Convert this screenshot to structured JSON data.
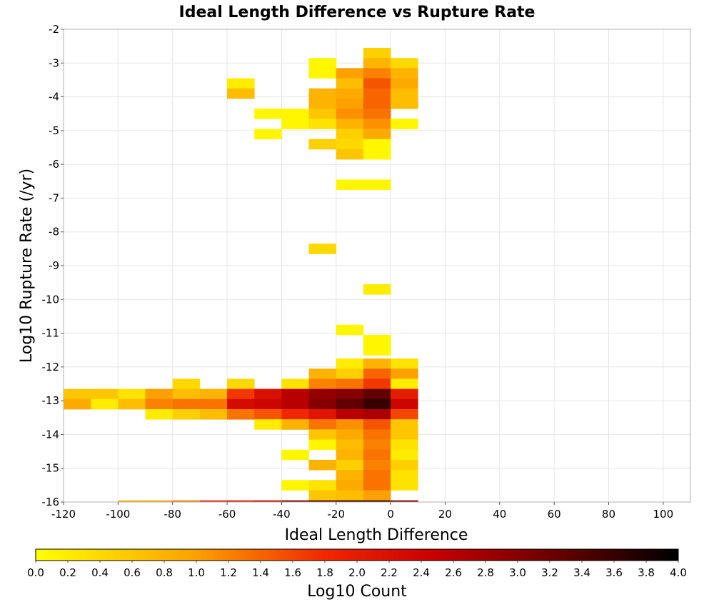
{
  "chart_data": {
    "type": "heatmap",
    "title": "Ideal Length Difference vs Rupture Rate",
    "xlabel": "Ideal Length Difference",
    "ylabel": "Log10 Rupture Rate (/yr)",
    "colorbar_label": "Log10 Count",
    "xlim": [
      -120,
      110
    ],
    "ylim": [
      -16,
      -2
    ],
    "x_ticks": [
      "-120",
      "-100",
      "-80",
      "-60",
      "-40",
      "-20",
      "0",
      "20",
      "40",
      "60",
      "80",
      "100"
    ],
    "y_ticks": [
      "-2",
      "-3",
      "-4",
      "-5",
      "-6",
      "-7",
      "-8",
      "-9",
      "-10",
      "-11",
      "-12",
      "-13",
      "-14",
      "-15",
      "-16"
    ],
    "colorbar_ticks": [
      "0.0",
      "0.2",
      "0.4",
      "0.6",
      "0.8",
      "1.0",
      "1.2",
      "1.4",
      "1.6",
      "1.8",
      "2.0",
      "2.2",
      "2.4",
      "2.6",
      "2.8",
      "3.0",
      "3.2",
      "3.4",
      "3.6",
      "3.8",
      "4.0"
    ],
    "colorbar_range": [
      0,
      4
    ],
    "grid": true,
    "bin_width_x": 10,
    "bin_height_y": 0.3,
    "cells": [
      {
        "x": -10,
        "y": -2.7,
        "v": 0.5
      },
      {
        "x": -30,
        "y": -3.0,
        "v": 0.1
      },
      {
        "x": -10,
        "y": -3.0,
        "v": 0.8
      },
      {
        "x": 0,
        "y": -3.0,
        "v": 0.4
      },
      {
        "x": -30,
        "y": -3.3,
        "v": 0.1
      },
      {
        "x": -20,
        "y": -3.3,
        "v": 1.0
      },
      {
        "x": -10,
        "y": -3.3,
        "v": 1.2
      },
      {
        "x": 0,
        "y": -3.3,
        "v": 0.8
      },
      {
        "x": -60,
        "y": -3.6,
        "v": 0.2
      },
      {
        "x": -20,
        "y": -3.6,
        "v": 0.7
      },
      {
        "x": -10,
        "y": -3.6,
        "v": 1.5
      },
      {
        "x": 0,
        "y": -3.6,
        "v": 0.9
      },
      {
        "x": -60,
        "y": -3.9,
        "v": 0.7
      },
      {
        "x": -30,
        "y": -3.9,
        "v": 0.8
      },
      {
        "x": -20,
        "y": -3.9,
        "v": 0.9
      },
      {
        "x": -10,
        "y": -3.9,
        "v": 1.4
      },
      {
        "x": 0,
        "y": -3.9,
        "v": 0.7
      },
      {
        "x": -30,
        "y": -4.2,
        "v": 0.8
      },
      {
        "x": -20,
        "y": -4.2,
        "v": 1.0
      },
      {
        "x": -10,
        "y": -4.2,
        "v": 1.4
      },
      {
        "x": 0,
        "y": -4.2,
        "v": 0.7
      },
      {
        "x": -50,
        "y": -4.5,
        "v": 0.1
      },
      {
        "x": -40,
        "y": -4.5,
        "v": 0.1
      },
      {
        "x": -30,
        "y": -4.5,
        "v": 0.6
      },
      {
        "x": -20,
        "y": -4.5,
        "v": 1.1
      },
      {
        "x": -10,
        "y": -4.5,
        "v": 1.3
      },
      {
        "x": -40,
        "y": -4.8,
        "v": 0.1
      },
      {
        "x": -30,
        "y": -4.8,
        "v": 0.3
      },
      {
        "x": -20,
        "y": -4.8,
        "v": 0.8
      },
      {
        "x": -10,
        "y": -4.8,
        "v": 1.1
      },
      {
        "x": 0,
        "y": -4.8,
        "v": 0.1
      },
      {
        "x": -50,
        "y": -5.1,
        "v": 0.1
      },
      {
        "x": -20,
        "y": -5.1,
        "v": 0.5
      },
      {
        "x": -10,
        "y": -5.1,
        "v": 0.9
      },
      {
        "x": -30,
        "y": -5.4,
        "v": 0.5
      },
      {
        "x": -20,
        "y": -5.4,
        "v": 0.4
      },
      {
        "x": -10,
        "y": -5.4,
        "v": 0.1
      },
      {
        "x": -20,
        "y": -5.7,
        "v": 0.6
      },
      {
        "x": -10,
        "y": -5.7,
        "v": 0.1
      },
      {
        "x": -20,
        "y": -6.6,
        "v": 0.1
      },
      {
        "x": -10,
        "y": -6.6,
        "v": 0.1
      },
      {
        "x": -30,
        "y": -8.5,
        "v": 0.4
      },
      {
        "x": -10,
        "y": -9.7,
        "v": 0.2
      },
      {
        "x": -20,
        "y": -10.9,
        "v": 0.1
      },
      {
        "x": -10,
        "y": -11.2,
        "v": 0.1
      },
      {
        "x": -10,
        "y": -11.5,
        "v": 0.1
      },
      {
        "x": -20,
        "y": -11.9,
        "v": 0.2
      },
      {
        "x": -10,
        "y": -11.9,
        "v": 0.8
      },
      {
        "x": 0,
        "y": -11.9,
        "v": 0.3
      },
      {
        "x": -30,
        "y": -12.2,
        "v": 0.8
      },
      {
        "x": -20,
        "y": -12.2,
        "v": 0.5
      },
      {
        "x": -10,
        "y": -12.2,
        "v": 1.4
      },
      {
        "x": 0,
        "y": -12.2,
        "v": 1.0
      },
      {
        "x": -80,
        "y": -12.5,
        "v": 0.4
      },
      {
        "x": -60,
        "y": -12.5,
        "v": 0.4
      },
      {
        "x": -40,
        "y": -12.5,
        "v": 0.3
      },
      {
        "x": -30,
        "y": -12.5,
        "v": 1.2
      },
      {
        "x": -20,
        "y": -12.5,
        "v": 1.3
      },
      {
        "x": -10,
        "y": -12.5,
        "v": 1.7
      },
      {
        "x": 0,
        "y": -12.5,
        "v": 0.2
      },
      {
        "x": -120,
        "y": -12.8,
        "v": 0.6
      },
      {
        "x": -110,
        "y": -12.8,
        "v": 0.6
      },
      {
        "x": -100,
        "y": -12.8,
        "v": 0.3
      },
      {
        "x": -90,
        "y": -12.8,
        "v": 1.0
      },
      {
        "x": -80,
        "y": -12.8,
        "v": 0.7
      },
      {
        "x": -70,
        "y": -12.8,
        "v": 0.8
      },
      {
        "x": -60,
        "y": -12.8,
        "v": 1.7
      },
      {
        "x": -50,
        "y": -12.8,
        "v": 2.2
      },
      {
        "x": -40,
        "y": -12.8,
        "v": 2.6
      },
      {
        "x": -30,
        "y": -12.8,
        "v": 2.9
      },
      {
        "x": -20,
        "y": -12.8,
        "v": 3.0
      },
      {
        "x": -10,
        "y": -12.8,
        "v": 3.3
      },
      {
        "x": 0,
        "y": -12.8,
        "v": 2.0
      },
      {
        "x": -120,
        "y": -13.1,
        "v": 0.9
      },
      {
        "x": -110,
        "y": -13.1,
        "v": 0.2
      },
      {
        "x": -100,
        "y": -13.1,
        "v": 0.7
      },
      {
        "x": -90,
        "y": -13.1,
        "v": 1.2
      },
      {
        "x": -80,
        "y": -13.1,
        "v": 1.3
      },
      {
        "x": -70,
        "y": -13.1,
        "v": 1.3
      },
      {
        "x": -60,
        "y": -13.1,
        "v": 2.3
      },
      {
        "x": -50,
        "y": -13.1,
        "v": 2.4
      },
      {
        "x": -40,
        "y": -13.1,
        "v": 2.6
      },
      {
        "x": -30,
        "y": -13.1,
        "v": 3.0
      },
      {
        "x": -20,
        "y": -13.1,
        "v": 3.3
      },
      {
        "x": -10,
        "y": -13.1,
        "v": 3.6
      },
      {
        "x": 0,
        "y": -13.1,
        "v": 2.4
      },
      {
        "x": -90,
        "y": -13.4,
        "v": 0.2
      },
      {
        "x": -80,
        "y": -13.4,
        "v": 0.5
      },
      {
        "x": -70,
        "y": -13.4,
        "v": 0.7
      },
      {
        "x": -60,
        "y": -13.4,
        "v": 1.3
      },
      {
        "x": -50,
        "y": -13.4,
        "v": 1.5
      },
      {
        "x": -40,
        "y": -13.4,
        "v": 1.8
      },
      {
        "x": -30,
        "y": -13.4,
        "v": 2.1
      },
      {
        "x": -20,
        "y": -13.4,
        "v": 2.6
      },
      {
        "x": -10,
        "y": -13.4,
        "v": 2.7
      },
      {
        "x": 0,
        "y": -13.4,
        "v": 1.6
      },
      {
        "x": -50,
        "y": -13.7,
        "v": 0.2
      },
      {
        "x": -40,
        "y": -13.7,
        "v": 0.8
      },
      {
        "x": -30,
        "y": -13.7,
        "v": 1.3
      },
      {
        "x": -20,
        "y": -13.7,
        "v": 1.1
      },
      {
        "x": -10,
        "y": -13.7,
        "v": 1.5
      },
      {
        "x": 0,
        "y": -13.7,
        "v": 0.6
      },
      {
        "x": -30,
        "y": -14.0,
        "v": 0.6
      },
      {
        "x": -20,
        "y": -14.0,
        "v": 0.9
      },
      {
        "x": -10,
        "y": -14.0,
        "v": 1.3
      },
      {
        "x": 0,
        "y": -14.0,
        "v": 0.6
      },
      {
        "x": -30,
        "y": -14.3,
        "v": 0.1
      },
      {
        "x": -20,
        "y": -14.3,
        "v": 0.7
      },
      {
        "x": -10,
        "y": -14.3,
        "v": 1.2
      },
      {
        "x": 0,
        "y": -14.3,
        "v": 0.3
      },
      {
        "x": -40,
        "y": -14.6,
        "v": 0.1
      },
      {
        "x": -20,
        "y": -14.6,
        "v": 0.8
      },
      {
        "x": -10,
        "y": -14.6,
        "v": 1.3
      },
      {
        "x": 0,
        "y": -14.6,
        "v": 0.2
      },
      {
        "x": -30,
        "y": -14.9,
        "v": 0.8
      },
      {
        "x": -20,
        "y": -14.9,
        "v": 0.5
      },
      {
        "x": -10,
        "y": -14.9,
        "v": 1.2
      },
      {
        "x": 0,
        "y": -14.9,
        "v": 0.5
      },
      {
        "x": -20,
        "y": -15.2,
        "v": 0.8
      },
      {
        "x": -10,
        "y": -15.2,
        "v": 1.3
      },
      {
        "x": 0,
        "y": -15.2,
        "v": 0.3
      },
      {
        "x": -40,
        "y": -15.5,
        "v": 0.1
      },
      {
        "x": -30,
        "y": -15.5,
        "v": 0.3
      },
      {
        "x": -20,
        "y": -15.5,
        "v": 0.9
      },
      {
        "x": -10,
        "y": -15.5,
        "v": 1.3
      },
      {
        "x": 0,
        "y": -15.5,
        "v": 0.3
      },
      {
        "x": -30,
        "y": -15.8,
        "v": 0.6
      },
      {
        "x": -20,
        "y": -15.8,
        "v": 0.7
      },
      {
        "x": -10,
        "y": -15.8,
        "v": 1.0
      },
      {
        "x": -100,
        "y": -16.1,
        "v": 0.8
      },
      {
        "x": -90,
        "y": -16.1,
        "v": 0.9
      },
      {
        "x": -80,
        "y": -16.1,
        "v": 1.2
      },
      {
        "x": -70,
        "y": -16.1,
        "v": 1.8
      },
      {
        "x": -60,
        "y": -16.1,
        "v": 2.0
      },
      {
        "x": -50,
        "y": -16.1,
        "v": 2.3
      },
      {
        "x": -40,
        "y": -16.1,
        "v": 3.0
      },
      {
        "x": -30,
        "y": -16.1,
        "v": 3.4
      },
      {
        "x": -20,
        "y": -16.1,
        "v": 3.6
      },
      {
        "x": -10,
        "y": -16.1,
        "v": 3.6
      },
      {
        "x": 0,
        "y": -16.1,
        "v": 3.0
      }
    ]
  }
}
